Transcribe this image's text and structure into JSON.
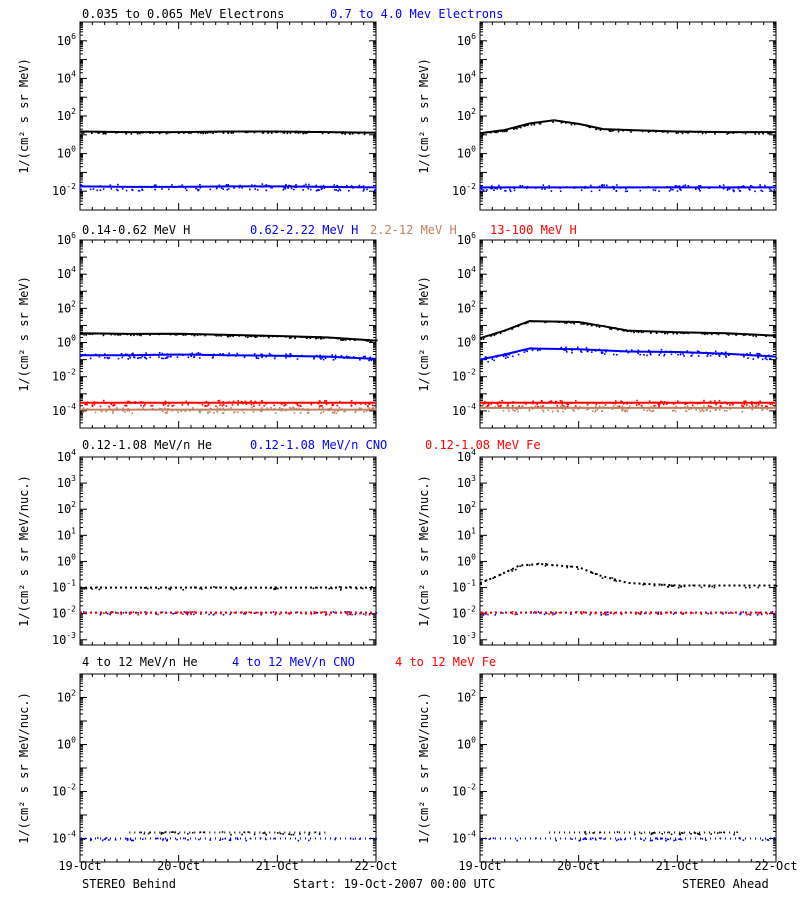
{
  "x_ticks": [
    "19-Oct",
    "20-Oct",
    "21-Oct",
    "22-Oct"
  ],
  "footer": {
    "left": "STEREO Behind",
    "center": "Start: 19-Oct-2007 00:00 UTC",
    "right": "STEREO Ahead"
  },
  "colors": {
    "black": "#000000",
    "blue": "#0000ff",
    "red": "#ff0000",
    "tan": "#c08060"
  },
  "rows": [
    {
      "legend": [
        {
          "text": "0.035 to 0.065 MeV Electrons",
          "color": "#000000"
        },
        {
          "text": "0.7 to 4.0 Mev Electrons",
          "color": "#0000ff"
        }
      ],
      "ylabel": "1/(cm² s sr MeV)",
      "ylog": [
        -3,
        7
      ]
    },
    {
      "legend": [
        {
          "text": "0.14-0.62 MeV H",
          "color": "#000000"
        },
        {
          "text": "0.62-2.22 MeV H",
          "color": "#0000ff"
        },
        {
          "text": "2.2-12 MeV H",
          "color": "#c08060"
        },
        {
          "text": "13-100 MeV H",
          "color": "#ff0000"
        }
      ],
      "ylabel": "1/(cm² s sr MeV)",
      "ylog": [
        -5,
        6
      ]
    },
    {
      "legend": [
        {
          "text": "0.12-1.08 MeV/n He",
          "color": "#000000"
        },
        {
          "text": "0.12-1.08 MeV/n CNO",
          "color": "#0000ff"
        },
        {
          "text": "0.12-1.08 MeV Fe",
          "color": "#ff0000"
        }
      ],
      "ylabel": "1/(cm² s sr MeV/nuc.)",
      "ylog": [
        -3.2,
        4
      ]
    },
    {
      "legend": [
        {
          "text": "4 to 12 MeV/n He",
          "color": "#000000"
        },
        {
          "text": "4 to 12 MeV/n CNO",
          "color": "#0000ff"
        },
        {
          "text": "4 to 12 MeV Fe",
          "color": "#ff0000"
        }
      ],
      "ylabel": "1/(cm² s sr MeV/nuc.)",
      "ylog": [
        -5,
        3
      ]
    }
  ],
  "chart_data": [
    {
      "type": "scatter",
      "panel": "STEREO Behind",
      "row": 0,
      "xlim": [
        "19-Oct",
        "22-Oct"
      ],
      "yscale": "log",
      "ylim": [
        0.001,
        10000000
      ],
      "series": [
        {
          "name": "0.035 to 0.065 MeV Electrons",
          "color": "#000000",
          "x": [
            0,
            0.5,
            1,
            1.5,
            2,
            2.5,
            3
          ],
          "y": [
            15,
            14,
            14,
            15,
            15,
            14,
            13
          ]
        },
        {
          "name": "0.7 to 4.0 Mev Electrons",
          "color": "#0000ff",
          "x": [
            0,
            0.5,
            1,
            1.5,
            2,
            2.5,
            3
          ],
          "y": [
            0.018,
            0.017,
            0.017,
            0.018,
            0.018,
            0.017,
            0.016
          ]
        }
      ]
    },
    {
      "type": "scatter",
      "panel": "STEREO Ahead",
      "row": 0,
      "xlim": [
        "19-Oct",
        "22-Oct"
      ],
      "yscale": "log",
      "ylim": [
        0.001,
        10000000
      ],
      "series": [
        {
          "name": "0.035 to 0.065 MeV Electrons",
          "color": "#000000",
          "x": [
            0,
            0.25,
            0.5,
            0.75,
            1,
            1.25,
            1.5,
            2,
            2.5,
            3
          ],
          "y": [
            12,
            18,
            40,
            60,
            38,
            20,
            18,
            15,
            14,
            14
          ]
        },
        {
          "name": "0.7 to 4.0 Mev Electrons",
          "color": "#0000ff",
          "x": [
            0,
            0.5,
            1,
            1.5,
            2,
            2.5,
            3
          ],
          "y": [
            0.016,
            0.016,
            0.016,
            0.016,
            0.016,
            0.016,
            0.016
          ]
        }
      ]
    },
    {
      "type": "scatter",
      "panel": "STEREO Behind",
      "row": 1,
      "xlim": [
        "19-Oct",
        "22-Oct"
      ],
      "yscale": "log",
      "ylim": [
        1e-05,
        1000000
      ],
      "series": [
        {
          "name": "0.14-0.62 MeV H",
          "color": "#000000",
          "x": [
            0,
            0.5,
            1,
            1.5,
            2,
            2.5,
            3
          ],
          "y": [
            3.5,
            3.2,
            3.3,
            2.8,
            2.4,
            2.0,
            1.3
          ]
        },
        {
          "name": "0.62-2.22 MeV H",
          "color": "#0000ff",
          "x": [
            0,
            0.5,
            1,
            1.5,
            2,
            2.5,
            3
          ],
          "y": [
            0.18,
            0.18,
            0.2,
            0.18,
            0.17,
            0.15,
            0.11
          ]
        },
        {
          "name": "2.2-12 MeV H",
          "color": "#c08060",
          "x": [
            0,
            0.5,
            1,
            1.5,
            2,
            2.5,
            3
          ],
          "y": [
            0.00012,
            0.00012,
            0.00012,
            0.00012,
            0.00012,
            0.00012,
            0.00012
          ]
        },
        {
          "name": "13-100 MeV H",
          "color": "#ff0000",
          "x": [
            0,
            0.5,
            1,
            1.5,
            2,
            2.5,
            3
          ],
          "y": [
            0.0003,
            0.0003,
            0.0003,
            0.0003,
            0.0003,
            0.0003,
            0.0003
          ]
        }
      ]
    },
    {
      "type": "scatter",
      "panel": "STEREO Ahead",
      "row": 1,
      "xlim": [
        "19-Oct",
        "22-Oct"
      ],
      "yscale": "log",
      "ylim": [
        1e-05,
        1000000
      ],
      "series": [
        {
          "name": "0.14-0.62 MeV H",
          "color": "#000000",
          "x": [
            0,
            0.25,
            0.5,
            1,
            1.25,
            1.5,
            2,
            2.5,
            3
          ],
          "y": [
            1.8,
            5,
            18,
            16,
            9,
            5,
            4,
            3.5,
            2.5
          ]
        },
        {
          "name": "0.62-2.22 MeV H",
          "color": "#0000ff",
          "x": [
            0,
            0.25,
            0.5,
            1,
            1.5,
            2,
            2.5,
            3
          ],
          "y": [
            0.1,
            0.2,
            0.45,
            0.4,
            0.3,
            0.28,
            0.22,
            0.15
          ]
        },
        {
          "name": "2.2-12 MeV H",
          "color": "#c08060",
          "x": [
            0,
            0.5,
            1,
            1.5,
            2,
            2.5,
            3
          ],
          "y": [
            0.00015,
            0.00015,
            0.00015,
            0.00015,
            0.00015,
            0.00015,
            0.00015
          ]
        },
        {
          "name": "13-100 MeV H",
          "color": "#ff0000",
          "x": [
            0,
            0.5,
            1,
            1.5,
            2,
            2.5,
            3
          ],
          "y": [
            0.0003,
            0.0003,
            0.0003,
            0.0003,
            0.0003,
            0.0003,
            0.0003
          ]
        }
      ]
    },
    {
      "type": "scatter",
      "panel": "STEREO Behind",
      "row": 2,
      "xlim": [
        "19-Oct",
        "22-Oct"
      ],
      "yscale": "log",
      "ylim": [
        0.0006,
        10000
      ],
      "series": [
        {
          "name": "0.12-1.08 MeV/n He",
          "color": "#000000",
          "x": [
            0,
            0.5,
            1,
            1.5,
            2,
            2.5,
            3
          ],
          "y": [
            0.1,
            0.1,
            0.1,
            0.1,
            0.1,
            0.1,
            0.1
          ]
        },
        {
          "name": "0.12-1.08 MeV/n CNO",
          "color": "#0000ff",
          "x": [
            0,
            0.5,
            1,
            1.5,
            2,
            2.5,
            3
          ],
          "y": [
            0.011,
            0.011,
            0.011,
            0.011,
            0.011,
            0.011,
            0.011
          ]
        },
        {
          "name": "0.12-1.08 MeV Fe",
          "color": "#ff0000",
          "x": [
            0,
            0.5,
            1,
            1.5,
            2,
            2.5,
            3
          ],
          "y": [
            0.011,
            0.011,
            0.011,
            0.011,
            0.011,
            0.011,
            0.011
          ]
        }
      ]
    },
    {
      "type": "scatter",
      "panel": "STEREO Ahead",
      "row": 2,
      "xlim": [
        "19-Oct",
        "22-Oct"
      ],
      "yscale": "log",
      "ylim": [
        0.0006,
        10000
      ],
      "series": [
        {
          "name": "0.12-1.08 MeV/n He",
          "color": "#000000",
          "x": [
            0,
            0.2,
            0.4,
            0.6,
            0.8,
            1,
            1.2,
            1.5,
            2,
            2.5,
            3
          ],
          "y": [
            0.15,
            0.3,
            0.7,
            0.8,
            0.7,
            0.6,
            0.3,
            0.15,
            0.12,
            0.12,
            0.12
          ]
        },
        {
          "name": "0.12-1.08 MeV/n CNO",
          "color": "#0000ff",
          "x": [
            0,
            0.5,
            1,
            1.5,
            2,
            2.5,
            3
          ],
          "y": [
            0.011,
            0.011,
            0.011,
            0.011,
            0.011,
            0.011,
            0.011
          ]
        },
        {
          "name": "0.12-1.08 MeV Fe",
          "color": "#ff0000",
          "x": [
            0,
            0.5,
            1,
            1.5,
            2,
            2.5,
            3
          ],
          "y": [
            0.011,
            0.011,
            0.011,
            0.011,
            0.011,
            0.011,
            0.011
          ]
        }
      ]
    },
    {
      "type": "scatter",
      "panel": "STEREO Behind",
      "row": 3,
      "xlim": [
        "19-Oct",
        "22-Oct"
      ],
      "yscale": "log",
      "ylim": [
        1e-05,
        1000
      ],
      "series": [
        {
          "name": "4 to 12 MeV/n He",
          "color": "#000000",
          "x": [
            0.5,
            0.7,
            1.2,
            1.3,
            2.0,
            2.5
          ],
          "y": [
            0.00018,
            0.00018,
            0.00018,
            0.00018,
            0.00018,
            0.00018
          ]
        },
        {
          "name": "4 to 12 MeV/n CNO",
          "color": "#0000ff",
          "x": [
            0,
            0.5,
            1,
            1.5,
            2,
            2.5,
            3
          ],
          "y": [
            0.0001,
            0.0001,
            0.0001,
            0.0001,
            0.0001,
            0.0001,
            0.0001
          ]
        },
        {
          "name": "4 to 12 MeV Fe",
          "color": "#ff0000",
          "x": [],
          "y": []
        }
      ]
    },
    {
      "type": "scatter",
      "panel": "STEREO Ahead",
      "row": 3,
      "xlim": [
        "19-Oct",
        "22-Oct"
      ],
      "yscale": "log",
      "ylim": [
        1e-05,
        1000
      ],
      "series": [
        {
          "name": "4 to 12 MeV/n He",
          "color": "#000000",
          "x": [
            0.7,
            1.8,
            2.6
          ],
          "y": [
            0.00018,
            0.00018,
            0.00018
          ]
        },
        {
          "name": "4 to 12 MeV/n CNO",
          "color": "#0000ff",
          "x": [
            0,
            0.5,
            1,
            1.5,
            2,
            2.5,
            3
          ],
          "y": [
            0.0001,
            0.0001,
            0.0001,
            0.0001,
            0.0001,
            0.0001,
            0.0001
          ]
        },
        {
          "name": "4 to 12 MeV Fe",
          "color": "#ff0000",
          "x": [],
          "y": []
        }
      ]
    }
  ]
}
